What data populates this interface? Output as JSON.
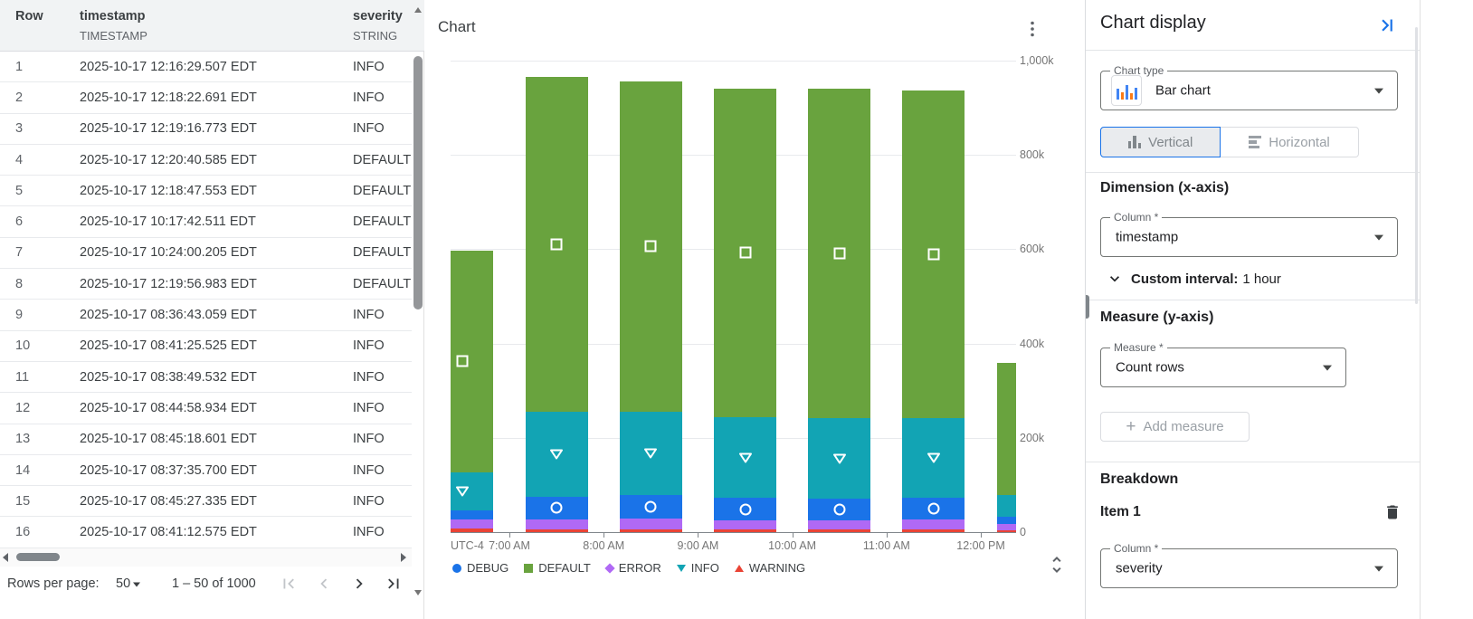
{
  "table": {
    "columns": [
      {
        "name": "Row",
        "type": ""
      },
      {
        "name": "timestamp",
        "type": "TIMESTAMP"
      },
      {
        "name": "severity",
        "type": "STRING"
      }
    ],
    "rows": [
      [
        "1",
        "2025-10-17 12:16:29.507 EDT",
        "INFO"
      ],
      [
        "2",
        "2025-10-17 12:18:22.691 EDT",
        "INFO"
      ],
      [
        "3",
        "2025-10-17 12:19:16.773 EDT",
        "INFO"
      ],
      [
        "4",
        "2025-10-17 12:20:40.585 EDT",
        "DEFAULT"
      ],
      [
        "5",
        "2025-10-17 12:18:47.553 EDT",
        "DEFAULT"
      ],
      [
        "6",
        "2025-10-17 10:17:42.511 EDT",
        "DEFAULT"
      ],
      [
        "7",
        "2025-10-17 10:24:00.205 EDT",
        "DEFAULT"
      ],
      [
        "8",
        "2025-10-17 12:19:56.983 EDT",
        "DEFAULT"
      ],
      [
        "9",
        "2025-10-17 08:36:43.059 EDT",
        "INFO"
      ],
      [
        "10",
        "2025-10-17 08:41:25.525 EDT",
        "INFO"
      ],
      [
        "11",
        "2025-10-17 08:38:49.532 EDT",
        "INFO"
      ],
      [
        "12",
        "2025-10-17 08:44:58.934 EDT",
        "INFO"
      ],
      [
        "13",
        "2025-10-17 08:45:18.601 EDT",
        "INFO"
      ],
      [
        "14",
        "2025-10-17 08:37:35.700 EDT",
        "INFO"
      ],
      [
        "15",
        "2025-10-17 08:45:27.335 EDT",
        "INFO"
      ],
      [
        "16",
        "2025-10-17 08:41:12.575 EDT",
        "INFO"
      ]
    ],
    "footer": {
      "rows_per_page_label": "Rows per page:",
      "rows_per_page_value": "50",
      "range_label": "1 – 50 of 1000"
    }
  },
  "chart_panel": {
    "title": "Chart"
  },
  "chart_data": {
    "type": "bar",
    "stacked": true,
    "title": "Chart",
    "x_axis_prefix": "UTC-4",
    "x_tick_labels": [
      "7:00 AM",
      "8:00 AM",
      "9:00 AM",
      "10:00 AM",
      "11:00 AM",
      "12:00 PM"
    ],
    "categories": [
      "6:00 AM",
      "7:00 AM",
      "8:00 AM",
      "9:00 AM",
      "10:00 AM",
      "11:00 AM",
      "12:00 PM"
    ],
    "unit": "rows (thousands)",
    "y_ticks": [
      "0",
      "200k",
      "400k",
      "600k",
      "800k",
      "1,000k"
    ],
    "ylim_k": [
      0,
      1000
    ],
    "grid": true,
    "legend_position": "bottom",
    "stack_order": [
      "WARNING",
      "ERROR",
      "DEBUG",
      "INFO",
      "DEFAULT"
    ],
    "series": [
      {
        "name": "DEBUG",
        "color": "#1a73e8",
        "marker": "circle",
        "values_k": [
          21,
          48,
          50,
          47,
          46,
          46,
          16
        ]
      },
      {
        "name": "DEFAULT",
        "color": "#69a33e",
        "marker": "square",
        "values_k": [
          470,
          709,
          700,
          697,
          700,
          695,
          280
        ]
      },
      {
        "name": "ERROR",
        "color": "#b069f5",
        "marker": "diamond",
        "values_k": [
          18,
          21,
          22,
          20,
          20,
          21,
          13
        ]
      },
      {
        "name": "INFO",
        "color": "#12a4b4",
        "marker": "triangle-down",
        "values_k": [
          80,
          181,
          178,
          172,
          170,
          170,
          45
        ]
      },
      {
        "name": "WARNING",
        "color": "#ea4335",
        "marker": "triangle-up",
        "values_k": [
          8,
          6,
          6,
          5,
          5,
          5,
          4
        ]
      }
    ]
  },
  "settings": {
    "title": "Chart display",
    "chart_type": {
      "label": "Chart type",
      "value": "Bar chart"
    },
    "orientation": {
      "vertical_label": "Vertical",
      "horizontal_label": "Horizontal",
      "selected": "Vertical"
    },
    "dimension": {
      "heading": "Dimension (x-axis)",
      "column_label": "Column *",
      "column_value": "timestamp",
      "interval_label": "Custom interval:",
      "interval_value": "1 hour"
    },
    "measure": {
      "heading": "Measure (y-axis)",
      "label": "Measure *",
      "value": "Count rows",
      "add_label": "Add measure"
    },
    "breakdown": {
      "heading": "Breakdown",
      "item_label": "Item 1",
      "column_label": "Column *",
      "column_value": "severity"
    }
  },
  "colors": {
    "accent_blue": "#1a73e8",
    "header_bg": "#f1f3f4",
    "grid_line": "#e8eaed"
  }
}
